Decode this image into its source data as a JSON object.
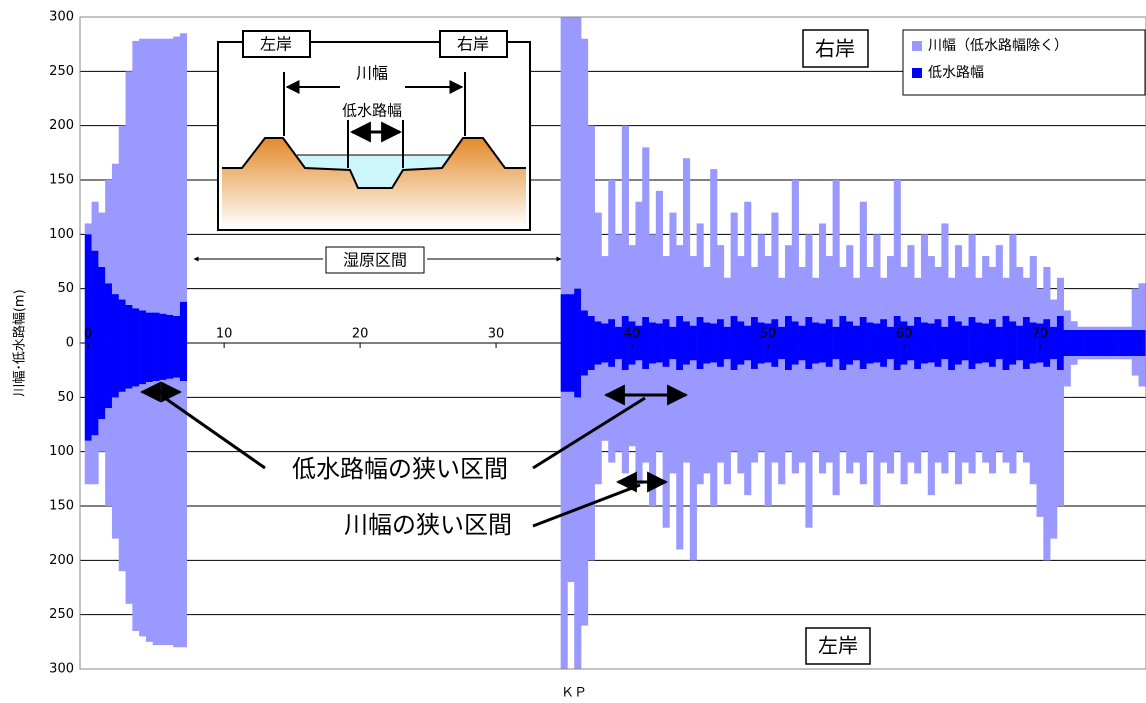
{
  "chart_data": {
    "type": "mirrored-stacked-bar",
    "y_label": "川幅･低水路幅(m)",
    "x_label": "ＫＰ",
    "xlim": [
      -0.6,
      77.8
    ],
    "xticks": [
      0,
      10,
      20,
      30,
      40,
      50,
      60,
      70
    ],
    "ylim": [
      -300,
      300
    ],
    "yticks": [
      {
        "value": -300,
        "label": "300"
      },
      {
        "value": -250,
        "label": "250"
      },
      {
        "value": -200,
        "label": "200"
      },
      {
        "value": -150,
        "label": "150"
      },
      {
        "value": -100,
        "label": "100"
      },
      {
        "value": -50,
        "label": "50"
      },
      0,
      50,
      100,
      150,
      200,
      250,
      300
    ],
    "grid": true,
    "legend": "top-right",
    "x": [
      0,
      0.5,
      1,
      1.5,
      2,
      2.5,
      3,
      3.5,
      4,
      4.5,
      5,
      5.5,
      6,
      6.5,
      7,
      35,
      35.5,
      36,
      36.5,
      37,
      37.5,
      38,
      38.5,
      39,
      39.5,
      40,
      40.5,
      41,
      41.5,
      42,
      42.5,
      43,
      43.5,
      44,
      44.5,
      45,
      45.5,
      46,
      46.5,
      47,
      47.5,
      48,
      48.5,
      49,
      49.5,
      50,
      50.5,
      51,
      51.5,
      52,
      52.5,
      53,
      53.5,
      54,
      54.5,
      55,
      55.5,
      56,
      56.5,
      57,
      57.5,
      58,
      58.5,
      59,
      59.5,
      60,
      60.5,
      61,
      61.5,
      62,
      62.5,
      63,
      63.5,
      64,
      64.5,
      65,
      65.5,
      66,
      66.5,
      67,
      67.5,
      68,
      68.5,
      69,
      69.5,
      70,
      70.5,
      71,
      71.5,
      72,
      72.5,
      73,
      73.5,
      74,
      74.5,
      75,
      75.5,
      76,
      76.5,
      77,
      77.5
    ],
    "series": [
      {
        "name": "川幅（低水路幅除く）",
        "color": "#9999ff",
        "values": [
          10,
          45,
          50,
          95,
          120,
          160,
          215,
          246,
          250,
          252,
          252,
          253,
          254,
          257,
          247,
          255,
          255,
          250,
          250,
          175,
          100,
          62,
          128,
          85,
          175,
          70,
          114,
          156,
          81,
          122,
          58,
          105,
          65,
          150,
          64,
          86,
          51,
          142,
          68,
          45,
          95,
          60,
          114,
          46,
          81,
          62,
          98,
          45,
          65,
          130,
          54,
          76,
          41,
          92,
          58,
          135,
          45,
          70,
          44,
          106,
          51,
          82,
          38,
          65,
          125,
          50,
          74,
          36,
          81,
          62,
          48,
          95,
          35,
          70,
          54,
          76,
          41,
          62,
          48,
          75,
          35,
          80,
          54,
          36,
          61,
          32,
          48,
          25,
          35,
          18,
          8,
          3,
          3,
          3,
          3,
          3,
          3,
          3,
          3,
          38,
          43
        ],
        "values_left": [
          -40,
          -45,
          -30,
          -90,
          -130,
          -165,
          -198,
          -225,
          -232,
          -239,
          -243,
          -244,
          -245,
          -248,
          -245,
          -255,
          -175,
          -250,
          -230,
          -175,
          -110,
          -72,
          -88,
          -85,
          -95,
          -75,
          -114,
          -86,
          -131,
          -82,
          -148,
          -105,
          -165,
          -90,
          -184,
          -106,
          -101,
          -132,
          -88,
          -115,
          -75,
          -100,
          -124,
          -86,
          -81,
          -132,
          -88,
          -115,
          -75,
          -100,
          -94,
          -146,
          -81,
          -102,
          -88,
          -125,
          -75,
          -100,
          -94,
          -106,
          -81,
          -132,
          -88,
          -105,
          -75,
          -110,
          -94,
          -96,
          -81,
          -122,
          -88,
          -105,
          -75,
          -110,
          -94,
          -96,
          -81,
          -92,
          -98,
          -85,
          -85,
          -100,
          -84,
          -86,
          -111,
          -142,
          -178,
          -165,
          -125,
          -28,
          -8,
          -3,
          -3,
          -3,
          -3,
          -3,
          -3,
          -3,
          -3,
          -18,
          -28
        ]
      },
      {
        "name": "低水路幅",
        "color": "#0000ff",
        "values": [
          100,
          85,
          70,
          55,
          45,
          40,
          35,
          32,
          30,
          28,
          28,
          27,
          26,
          25,
          38,
          45,
          45,
          50,
          30,
          25,
          20,
          18,
          22,
          15,
          25,
          20,
          16,
          24,
          19,
          18,
          22,
          15,
          25,
          20,
          16,
          24,
          19,
          18,
          22,
          15,
          25,
          20,
          16,
          24,
          19,
          18,
          22,
          15,
          25,
          20,
          16,
          24,
          19,
          18,
          22,
          15,
          25,
          20,
          16,
          24,
          19,
          18,
          22,
          15,
          25,
          20,
          16,
          24,
          19,
          18,
          22,
          15,
          25,
          20,
          16,
          24,
          19,
          18,
          22,
          15,
          25,
          20,
          16,
          24,
          19,
          18,
          22,
          15,
          25,
          12,
          12,
          12,
          12,
          12,
          12,
          12,
          12,
          12,
          12,
          12,
          12
        ],
        "values_left": [
          -90,
          -85,
          -70,
          -60,
          -50,
          -45,
          -42,
          -40,
          -38,
          -36,
          -35,
          -34,
          -33,
          -32,
          -35,
          -45,
          -45,
          -50,
          -30,
          -25,
          -20,
          -18,
          -22,
          -15,
          -25,
          -20,
          -16,
          -24,
          -19,
          -18,
          -22,
          -15,
          -25,
          -20,
          -16,
          -24,
          -19,
          -18,
          -22,
          -15,
          -25,
          -20,
          -16,
          -24,
          -19,
          -18,
          -22,
          -15,
          -25,
          -20,
          -16,
          -24,
          -19,
          -18,
          -22,
          -15,
          -25,
          -20,
          -16,
          -24,
          -19,
          -18,
          -22,
          -15,
          -25,
          -20,
          -16,
          -24,
          -19,
          -18,
          -22,
          -15,
          -25,
          -20,
          -16,
          -24,
          -19,
          -18,
          -22,
          -15,
          -25,
          -20,
          -16,
          -24,
          -19,
          -18,
          -22,
          -15,
          -25,
          -12,
          -12,
          -12,
          -12,
          -12,
          -12,
          -12,
          -12,
          -12,
          -12,
          -12,
          -12
        ]
      }
    ],
    "annotations": {
      "right_bank": "右岸",
      "left_bank": "左岸",
      "wetland": "湿原区間",
      "narrow_low": "低水路幅の狭い区間",
      "narrow_river": "川幅の狭い区間"
    },
    "inset": {
      "left_bank": "左岸",
      "right_bank": "右岸",
      "river_width": "川幅",
      "low_width": "低水路幅"
    }
  }
}
